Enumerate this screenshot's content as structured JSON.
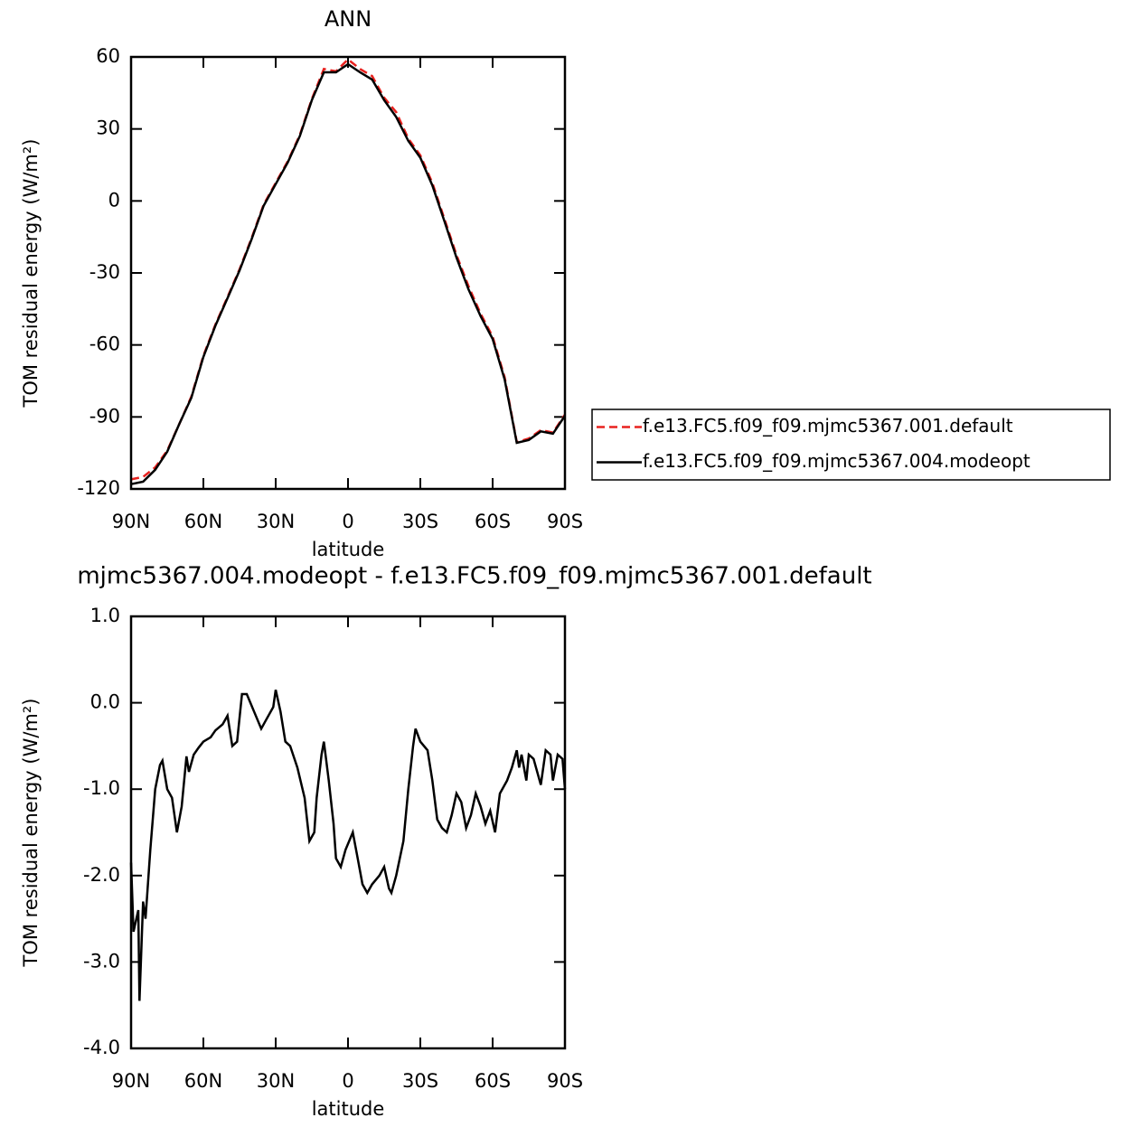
{
  "chart_data": [
    {
      "type": "line",
      "title": "ANN",
      "xlabel": "latitude",
      "ylabel": "TOM residual energy (W/m²)",
      "x": [
        90,
        85,
        80,
        75,
        70,
        65,
        60,
        55,
        50,
        45,
        40,
        35,
        30,
        25,
        20,
        15,
        10,
        5,
        0,
        -5,
        -10,
        -15,
        -20,
        -25,
        -30,
        -35,
        -40,
        -45,
        -50,
        -55,
        -60,
        -65,
        -70,
        -75,
        -80,
        -85,
        -90
      ],
      "series": [
        {
          "name": "f.e13.FC5.f09_f09.mjmc5367.001.default",
          "color": "#e8221f",
          "dash": "dashed",
          "values": [
            -116,
            -115,
            -111,
            -104,
            -93,
            -81.5,
            -64.5,
            -51.5,
            -40,
            -28.5,
            -15.5,
            -1.5,
            7.5,
            16.5,
            27.5,
            42.5,
            55,
            54,
            59,
            55,
            52,
            43,
            37,
            26,
            19,
            7.5,
            -7.5,
            -22.5,
            -35.5,
            -47,
            -56.5,
            -73.5,
            -100.5,
            -99,
            -95.5,
            -96.5,
            -89
          ]
        },
        {
          "name": "f.e13.FC5.f09_f09.mjmc5367.004.modeopt",
          "color": "#000000",
          "dash": "solid",
          "values": [
            -118,
            -117,
            -112,
            -104.5,
            -93,
            -82,
            -65,
            -52,
            -40.5,
            -29,
            -16,
            -2,
            7,
            16,
            27,
            42,
            53.6,
            53.6,
            57,
            53.6,
            50.6,
            42,
            35,
            25,
            18,
            6.5,
            -8.5,
            -23.6,
            -36.8,
            -48,
            -57.5,
            -74.4,
            -100.8,
            -99.6,
            -96,
            -97,
            -89.5
          ]
        }
      ],
      "xlim": [
        90,
        -90
      ],
      "xticks": [
        {
          "value": 90,
          "label": "90N"
        },
        {
          "value": 60,
          "label": "60N"
        },
        {
          "value": 30,
          "label": "30N"
        },
        0,
        {
          "value": -30,
          "label": "30S"
        },
        {
          "value": -60,
          "label": "60S"
        },
        {
          "value": -90,
          "label": "90S"
        }
      ],
      "ylim": [
        -120,
        60
      ],
      "yticks": [
        60,
        30,
        0,
        -30,
        -60,
        -90,
        -120
      ],
      "legend": "right"
    },
    {
      "type": "line",
      "title": "mjmc5367.004.modeopt - f.e13.FC5.f09_f09.mjmc5367.001.default",
      "xlabel": "latitude",
      "ylabel": "TOM residual energy (W/m²)",
      "x": [
        90,
        89,
        87,
        86.5,
        85,
        84,
        82,
        80,
        78,
        77,
        75,
        73,
        71,
        69,
        67,
        66,
        64,
        62,
        60,
        57,
        55,
        52,
        50,
        48,
        46,
        44,
        42,
        39,
        36,
        34,
        31,
        30,
        28,
        26,
        24,
        21,
        18,
        16,
        14,
        13,
        11,
        10,
        8,
        6,
        5,
        3,
        1,
        -2,
        -4,
        -6,
        -8,
        -10,
        -13,
        -15,
        -17,
        -18,
        -20,
        -23,
        -25,
        -27,
        -28,
        -30,
        -33,
        -35,
        -37,
        -39,
        -41,
        -43,
        -45,
        -47,
        -49,
        -51,
        -53,
        -55,
        -57,
        -59,
        -61,
        -63,
        -66,
        -68,
        -70,
        -71,
        -72,
        -74,
        -75,
        -77,
        -80,
        -82,
        -84,
        -85,
        -87,
        -89,
        -90
      ],
      "series": [
        {
          "color": "#000000",
          "dash": "solid",
          "values": [
            -1.85,
            -2.65,
            -2.4,
            -3.45,
            -2.3,
            -2.5,
            -1.7,
            -1.0,
            -0.72,
            -0.67,
            -1.0,
            -1.1,
            -1.5,
            -1.2,
            -0.62,
            -0.8,
            -0.6,
            -0.52,
            -0.45,
            -0.4,
            -0.32,
            -0.25,
            -0.15,
            -0.5,
            -0.45,
            0.1,
            0.1,
            -0.1,
            -0.3,
            -0.2,
            -0.05,
            0.15,
            -0.1,
            -0.45,
            -0.5,
            -0.75,
            -1.1,
            -1.6,
            -1.5,
            -1.1,
            -0.6,
            -0.45,
            -0.9,
            -1.4,
            -1.8,
            -1.9,
            -1.7,
            -1.5,
            -1.8,
            -2.1,
            -2.2,
            -2.1,
            -2.0,
            -1.9,
            -2.15,
            -2.2,
            -2.0,
            -1.6,
            -1.0,
            -0.5,
            -0.3,
            -0.45,
            -0.55,
            -0.9,
            -1.35,
            -1.45,
            -1.5,
            -1.3,
            -1.05,
            -1.15,
            -1.45,
            -1.3,
            -1.05,
            -1.2,
            -1.4,
            -1.25,
            -1.5,
            -1.05,
            -0.9,
            -0.75,
            -0.55,
            -0.75,
            -0.6,
            -0.9,
            -0.6,
            -0.65,
            -0.95,
            -0.55,
            -0.6,
            -0.9,
            -0.6,
            -0.65,
            -1.0
          ]
        }
      ],
      "xlim": [
        90,
        -90
      ],
      "xticks": [
        {
          "value": 90,
          "label": "90N"
        },
        {
          "value": 60,
          "label": "60N"
        },
        {
          "value": 30,
          "label": "30N"
        },
        0,
        {
          "value": -30,
          "label": "30S"
        },
        {
          "value": -60,
          "label": "60S"
        },
        {
          "value": -90,
          "label": "90S"
        }
      ],
      "ylim": [
        -4,
        1
      ],
      "yticks": [
        {
          "value": 1,
          "label": "1.0"
        },
        {
          "value": 0,
          "label": "0.0"
        },
        {
          "value": -1,
          "label": "-1.0"
        },
        {
          "value": -2,
          "label": "-2.0"
        },
        {
          "value": -3,
          "label": "-3.0"
        },
        {
          "value": -4,
          "label": "-4.0"
        }
      ]
    }
  ]
}
